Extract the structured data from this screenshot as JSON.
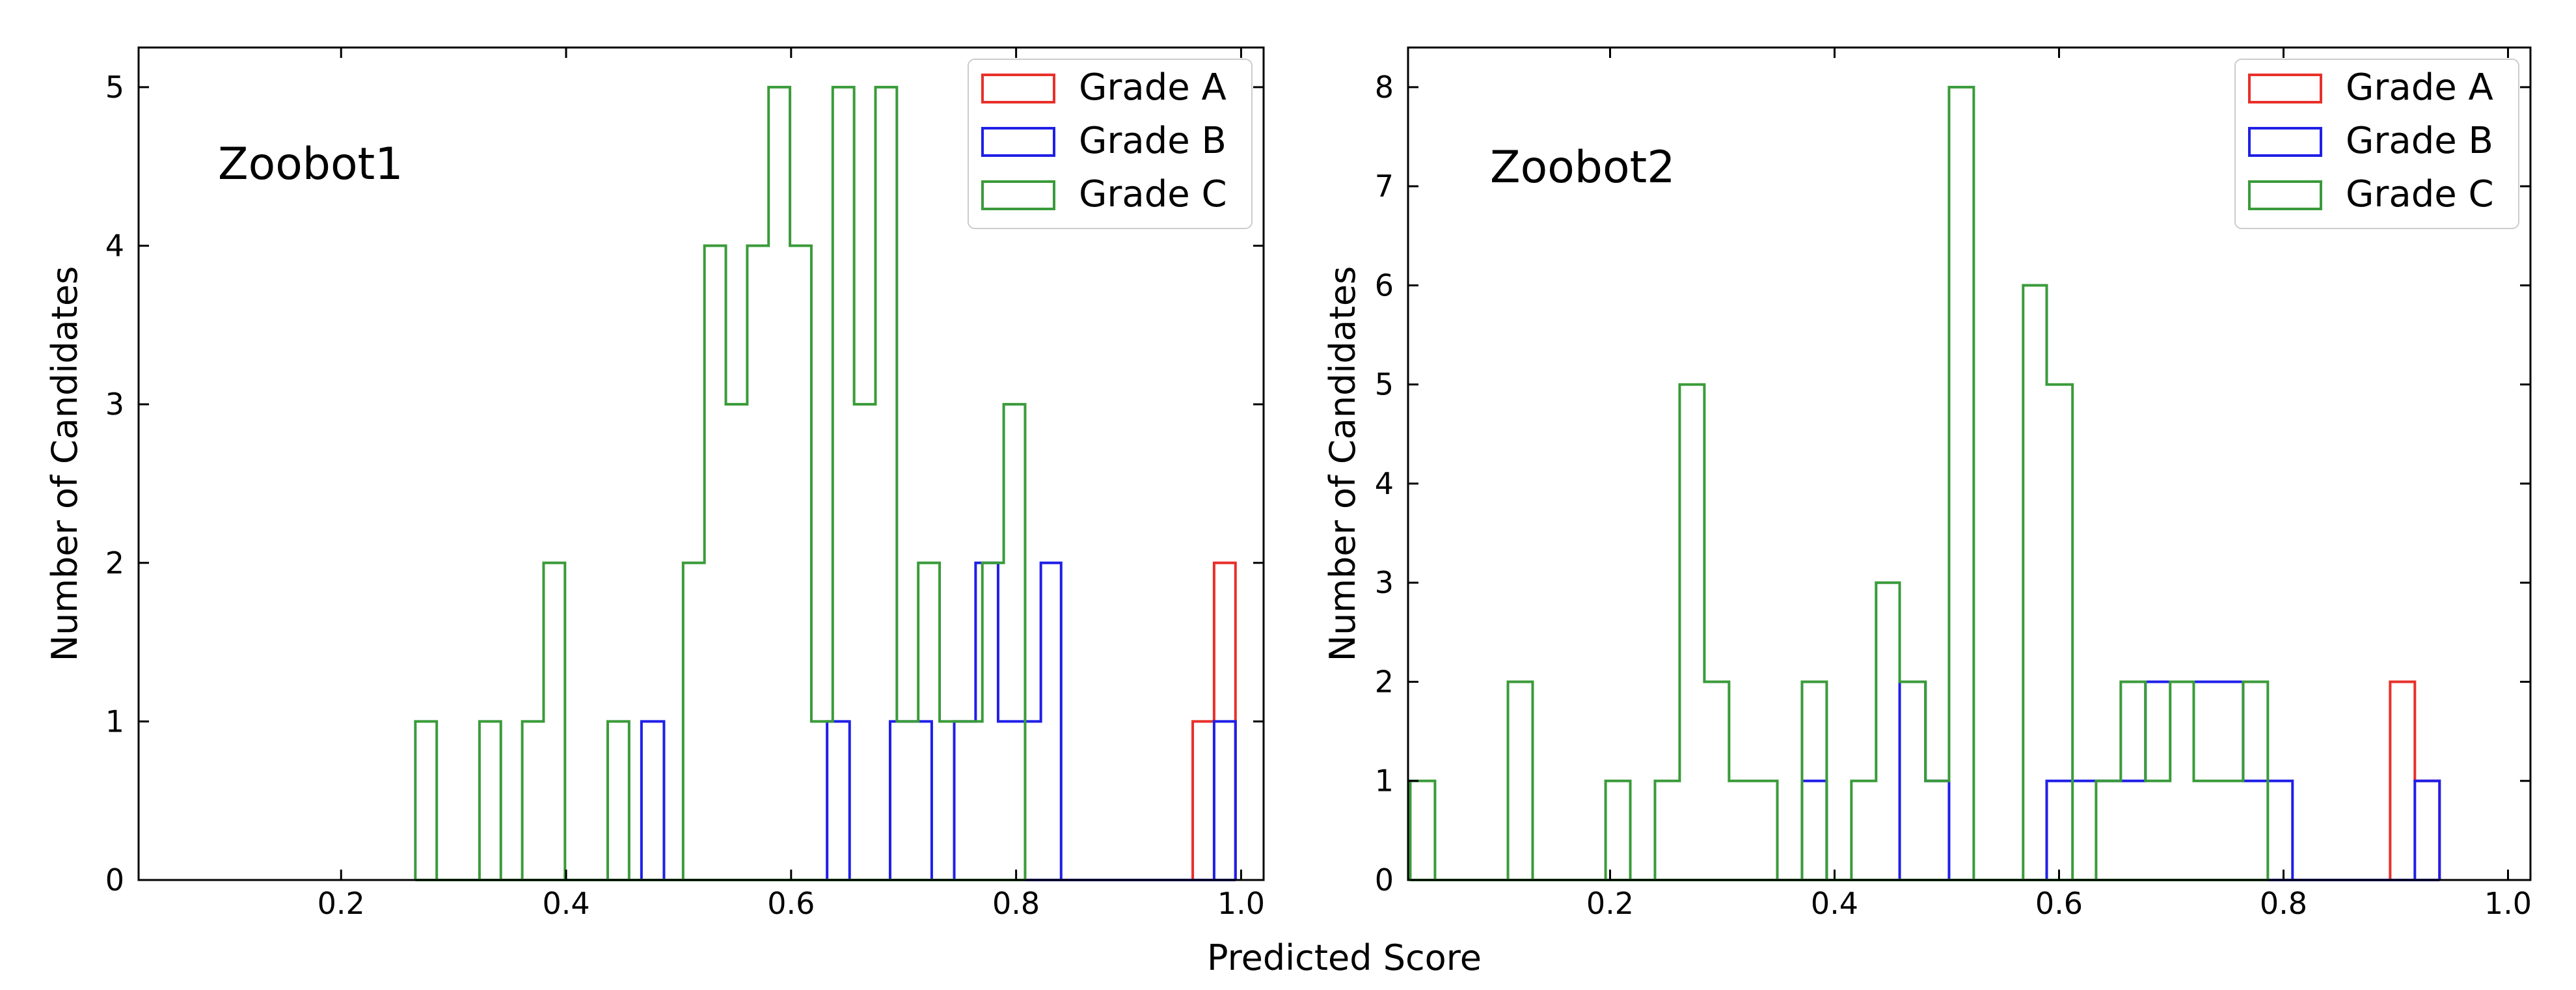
{
  "figure": {
    "shared_xlabel": "Predicted Score"
  },
  "chart_data": [
    {
      "type": "histogram-step",
      "annotation": "Zoobot1",
      "xlabel": "",
      "ylabel": "Number of Candidates",
      "xlim": [
        0.02,
        1.02
      ],
      "ylim": [
        0,
        5.25
      ],
      "xticks": [
        "0.2",
        "0.4",
        "0.6",
        "0.8",
        "1.0"
      ],
      "yticks": [
        "0",
        "1",
        "2",
        "3",
        "4",
        "5"
      ],
      "legend_position": "upper right",
      "series": [
        {
          "name": "Grade A",
          "color": "#e8302a",
          "bins": [
            {
              "x0": 0.957,
              "x1": 0.976,
              "count": 1
            },
            {
              "x0": 0.976,
              "x1": 0.995,
              "count": 2
            }
          ]
        },
        {
          "name": "Grade B",
          "color": "#1f1fe8",
          "bins": [
            {
              "x0": 0.467,
              "x1": 0.487,
              "count": 1
            },
            {
              "x0": 0.632,
              "x1": 0.652,
              "count": 1
            },
            {
              "x0": 0.688,
              "x1": 0.707,
              "count": 1
            },
            {
              "x0": 0.707,
              "x1": 0.725,
              "count": 1
            },
            {
              "x0": 0.745,
              "x1": 0.764,
              "count": 1
            },
            {
              "x0": 0.764,
              "x1": 0.784,
              "count": 2
            },
            {
              "x0": 0.784,
              "x1": 0.802,
              "count": 1
            },
            {
              "x0": 0.802,
              "x1": 0.822,
              "count": 1
            },
            {
              "x0": 0.822,
              "x1": 0.84,
              "count": 2
            },
            {
              "x0": 0.976,
              "x1": 0.995,
              "count": 1
            }
          ]
        },
        {
          "name": "Grade C",
          "color": "#3a9b3a",
          "bins": [
            {
              "x0": 0.266,
              "x1": 0.285,
              "count": 1
            },
            {
              "x0": 0.323,
              "x1": 0.342,
              "count": 1
            },
            {
              "x0": 0.361,
              "x1": 0.38,
              "count": 1
            },
            {
              "x0": 0.38,
              "x1": 0.399,
              "count": 2
            },
            {
              "x0": 0.437,
              "x1": 0.456,
              "count": 1
            },
            {
              "x0": 0.504,
              "x1": 0.523,
              "count": 2
            },
            {
              "x0": 0.523,
              "x1": 0.542,
              "count": 4
            },
            {
              "x0": 0.542,
              "x1": 0.561,
              "count": 3
            },
            {
              "x0": 0.561,
              "x1": 0.58,
              "count": 4
            },
            {
              "x0": 0.58,
              "x1": 0.599,
              "count": 5
            },
            {
              "x0": 0.599,
              "x1": 0.618,
              "count": 4
            },
            {
              "x0": 0.618,
              "x1": 0.637,
              "count": 1
            },
            {
              "x0": 0.637,
              "x1": 0.656,
              "count": 5
            },
            {
              "x0": 0.656,
              "x1": 0.675,
              "count": 3
            },
            {
              "x0": 0.675,
              "x1": 0.694,
              "count": 5
            },
            {
              "x0": 0.694,
              "x1": 0.713,
              "count": 1
            },
            {
              "x0": 0.713,
              "x1": 0.732,
              "count": 2
            },
            {
              "x0": 0.732,
              "x1": 0.751,
              "count": 1
            },
            {
              "x0": 0.751,
              "x1": 0.77,
              "count": 1
            },
            {
              "x0": 0.77,
              "x1": 0.789,
              "count": 2
            },
            {
              "x0": 0.789,
              "x1": 0.808,
              "count": 3
            }
          ]
        }
      ]
    },
    {
      "type": "histogram-step",
      "annotation": "Zoobot2",
      "xlabel": "",
      "ylabel": "Number of Candidates",
      "xlim": [
        0.02,
        1.02
      ],
      "ylim": [
        0,
        8.4
      ],
      "xticks": [
        "0.2",
        "0.4",
        "0.6",
        "0.8",
        "1.0"
      ],
      "yticks": [
        "0",
        "1",
        "2",
        "3",
        "4",
        "5",
        "6",
        "7",
        "8"
      ],
      "legend_position": "upper right",
      "series": [
        {
          "name": "Grade A",
          "color": "#e8302a",
          "bins": [
            {
              "x0": 0.895,
              "x1": 0.917,
              "count": 2
            },
            {
              "x0": 0.917,
              "x1": 0.939,
              "count": 1
            }
          ]
        },
        {
          "name": "Grade B",
          "color": "#1f1fe8",
          "bins": [
            {
              "x0": 0.371,
              "x1": 0.393,
              "count": 1
            },
            {
              "x0": 0.458,
              "x1": 0.481,
              "count": 2
            },
            {
              "x0": 0.481,
              "x1": 0.502,
              "count": 1
            },
            {
              "x0": 0.589,
              "x1": 0.612,
              "count": 1
            },
            {
              "x0": 0.612,
              "x1": 0.633,
              "count": 1
            },
            {
              "x0": 0.633,
              "x1": 0.655,
              "count": 1
            },
            {
              "x0": 0.655,
              "x1": 0.677,
              "count": 1
            },
            {
              "x0": 0.677,
              "x1": 0.699,
              "count": 2
            },
            {
              "x0": 0.699,
              "x1": 0.72,
              "count": 2
            },
            {
              "x0": 0.72,
              "x1": 0.742,
              "count": 2
            },
            {
              "x0": 0.742,
              "x1": 0.764,
              "count": 2
            },
            {
              "x0": 0.764,
              "x1": 0.786,
              "count": 1
            },
            {
              "x0": 0.786,
              "x1": 0.808,
              "count": 1
            },
            {
              "x0": 0.917,
              "x1": 0.939,
              "count": 1
            }
          ]
        },
        {
          "name": "Grade C",
          "color": "#3a9b3a",
          "bins": [
            {
              "x0": 0.022,
              "x1": 0.044,
              "count": 1
            },
            {
              "x0": 0.109,
              "x1": 0.131,
              "count": 2
            },
            {
              "x0": 0.196,
              "x1": 0.218,
              "count": 1
            },
            {
              "x0": 0.24,
              "x1": 0.262,
              "count": 1
            },
            {
              "x0": 0.262,
              "x1": 0.284,
              "count": 5
            },
            {
              "x0": 0.284,
              "x1": 0.306,
              "count": 2
            },
            {
              "x0": 0.306,
              "x1": 0.327,
              "count": 1
            },
            {
              "x0": 0.327,
              "x1": 0.349,
              "count": 1
            },
            {
              "x0": 0.371,
              "x1": 0.393,
              "count": 2
            },
            {
              "x0": 0.415,
              "x1": 0.437,
              "count": 1
            },
            {
              "x0": 0.437,
              "x1": 0.458,
              "count": 3
            },
            {
              "x0": 0.458,
              "x1": 0.481,
              "count": 2
            },
            {
              "x0": 0.481,
              "x1": 0.502,
              "count": 1
            },
            {
              "x0": 0.502,
              "x1": 0.524,
              "count": 8
            },
            {
              "x0": 0.568,
              "x1": 0.589,
              "count": 6
            },
            {
              "x0": 0.589,
              "x1": 0.612,
              "count": 5
            },
            {
              "x0": 0.633,
              "x1": 0.655,
              "count": 1
            },
            {
              "x0": 0.655,
              "x1": 0.677,
              "count": 2
            },
            {
              "x0": 0.677,
              "x1": 0.699,
              "count": 1
            },
            {
              "x0": 0.699,
              "x1": 0.72,
              "count": 2
            },
            {
              "x0": 0.72,
              "x1": 0.742,
              "count": 1
            },
            {
              "x0": 0.742,
              "x1": 0.764,
              "count": 1
            },
            {
              "x0": 0.764,
              "x1": 0.786,
              "count": 2
            }
          ]
        }
      ]
    }
  ]
}
